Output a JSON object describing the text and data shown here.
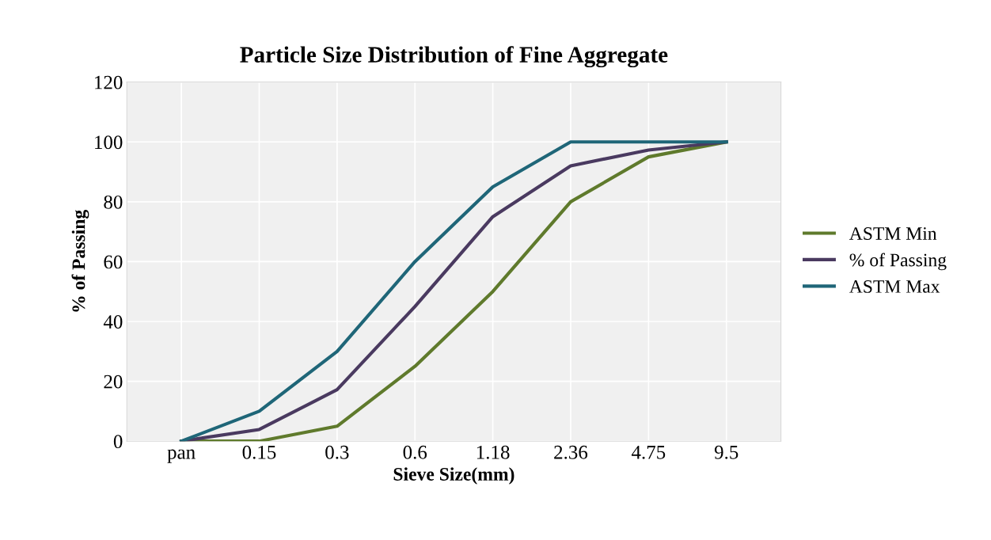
{
  "chart_data": {
    "type": "line",
    "title": "Particle Size Distribution of Fine Aggregate",
    "xlabel": "Sieve Size(mm)",
    "ylabel": "% of Passing",
    "categories": [
      "pan",
      "0.15",
      "0.3",
      "0.6",
      "1.18",
      "2.36",
      "4.75",
      "9.5"
    ],
    "series": [
      {
        "name": "ASTM Min",
        "color": "#5f7a2c",
        "values": [
          0,
          0,
          5,
          25,
          50,
          80,
          95,
          100
        ]
      },
      {
        "name": "% of Passing",
        "color": "#4a3a60",
        "values": [
          0,
          3.9,
          17.2,
          45,
          75,
          92,
          97.3,
          100
        ]
      },
      {
        "name": "ASTM Max",
        "color": "#1f6678",
        "values": [
          0,
          10,
          30,
          60,
          85,
          100,
          100,
          100
        ]
      }
    ],
    "ylim": [
      0,
      120
    ],
    "yticks": [
      0,
      20,
      40,
      60,
      80,
      100,
      120
    ],
    "grid": true,
    "legend": "right",
    "marker": "none",
    "line_style": "solid"
  }
}
